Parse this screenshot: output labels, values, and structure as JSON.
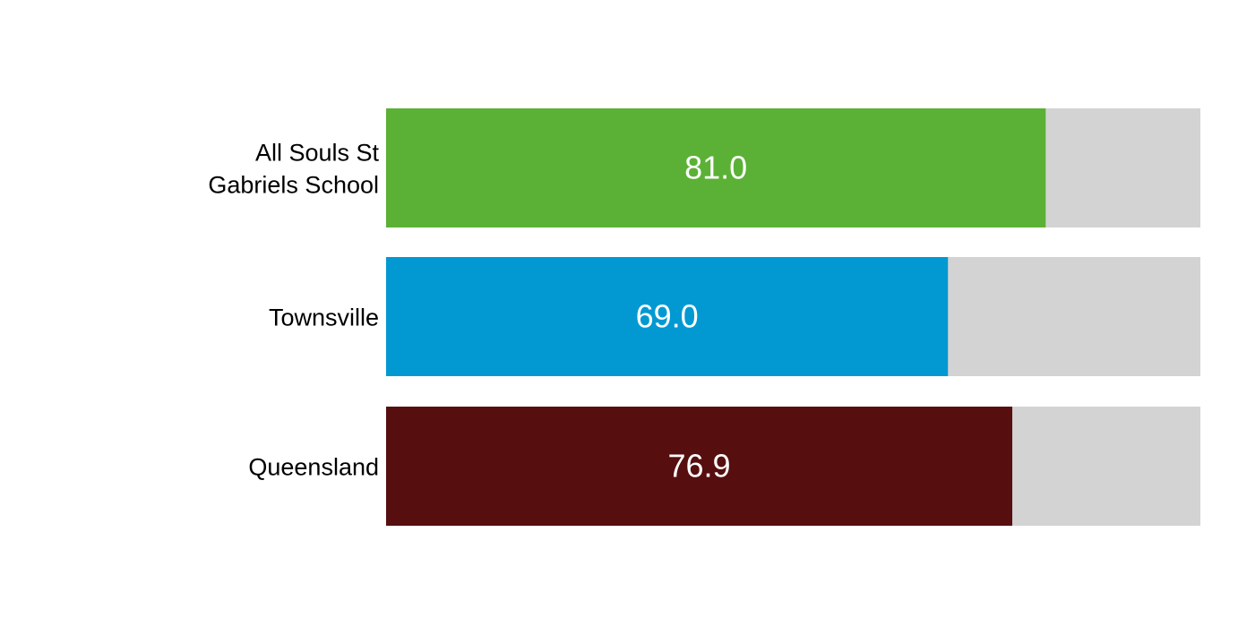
{
  "chart_data": {
    "type": "bar",
    "orientation": "horizontal",
    "categories": [
      [
        "All Souls St",
        "Gabriels School"
      ],
      [
        "Townsville"
      ],
      [
        "Queensland"
      ]
    ],
    "values": [
      81.0,
      69.0,
      76.9
    ],
    "value_labels": [
      "81.0",
      "69.0",
      "76.9"
    ],
    "colors": [
      "#5bb135",
      "#0299d3",
      "#570e0e"
    ],
    "background_bar_color": "#d3d3d3",
    "xlim": [
      0,
      100
    ],
    "grid": false,
    "legend": "none"
  }
}
